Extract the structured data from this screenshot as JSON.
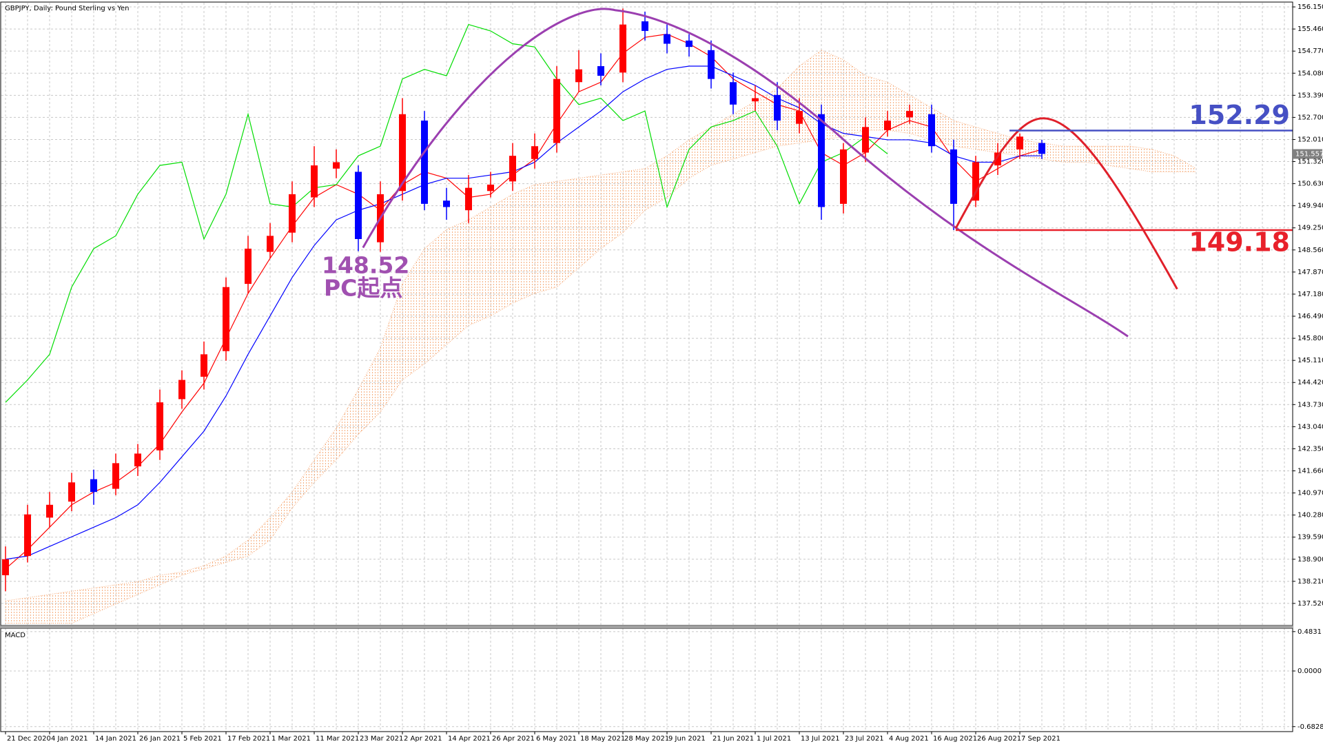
{
  "chart_data": [
    {
      "type": "candlestick",
      "title": "GBPJPY, Daily:  Pound Sterling vs Yen",
      "categories": [
        "21 Dec 2020",
        null,
        "4 Jan 2021",
        null,
        "14 Jan 2021",
        null,
        "26 Jan 2021",
        null,
        "5 Feb 2021",
        null,
        "17 Feb 2021",
        null,
        "1 Mar 2021",
        null,
        "11 Mar 2021",
        null,
        "23 Mar 2021",
        null,
        "2 Apr 2021",
        null,
        "14 Apr 2021",
        null,
        "26 Apr 2021",
        null,
        "6 May 2021",
        null,
        "18 May 2021",
        null,
        "28 May 2021",
        null,
        "9 Jun 2021",
        null,
        "21 Jun 2021",
        null,
        "1 Jul 2021",
        null,
        "13 Jul 2021",
        null,
        "23 Jul 2021",
        null,
        "4 Aug 2021",
        null,
        "16 Aug 2021",
        null,
        "26 Aug 2021",
        null,
        "7 Sep 2021",
        null,
        null,
        null,
        null,
        null,
        null,
        null,
        null,
        null,
        null,
        null
      ],
      "open": [
        138.4,
        139.0,
        140.2,
        140.7,
        141.4,
        141.1,
        141.8,
        142.3,
        143.9,
        144.6,
        145.4,
        147.5,
        148.5,
        149.1,
        150.2,
        151.1,
        151.0,
        148.8,
        150.4,
        152.6,
        150.1,
        149.8,
        150.4,
        150.7,
        151.4,
        151.9,
        153.8,
        154.3,
        154.1,
        155.7,
        155.3,
        155.1,
        154.8,
        153.8,
        153.2,
        153.4,
        152.5,
        152.8,
        150.0,
        151.6,
        152.3,
        152.7,
        152.8,
        151.7,
        150.1,
        151.2,
        151.7,
        151.9,
        null,
        null,
        null,
        null,
        null,
        null,
        null,
        null,
        null,
        null
      ],
      "high": [
        139.3,
        140.6,
        141.0,
        141.6,
        141.7,
        142.2,
        142.5,
        144.2,
        144.8,
        145.7,
        147.7,
        149.0,
        149.4,
        150.7,
        151.8,
        151.7,
        151.2,
        150.7,
        153.3,
        152.9,
        150.5,
        150.9,
        151.0,
        151.9,
        152.2,
        154.3,
        154.8,
        154.7,
        156.1,
        156.0,
        155.6,
        155.3,
        155.1,
        154.1,
        153.7,
        153.8,
        153.3,
        153.1,
        151.9,
        152.7,
        152.9,
        153.1,
        153.1,
        152.0,
        151.5,
        151.9,
        152.2,
        152.0,
        null,
        null,
        null,
        null,
        null,
        null,
        null,
        null,
        null,
        null
      ],
      "low": [
        137.9,
        138.8,
        139.9,
        140.4,
        140.6,
        140.9,
        141.5,
        142.0,
        143.6,
        144.2,
        145.1,
        147.2,
        148.3,
        148.8,
        149.9,
        150.8,
        148.52,
        148.5,
        150.1,
        149.8,
        149.5,
        149.4,
        150.2,
        150.4,
        151.1,
        151.6,
        153.5,
        153.7,
        153.8,
        155.1,
        154.7,
        154.6,
        153.6,
        152.8,
        152.9,
        152.3,
        152.2,
        149.5,
        149.7,
        151.3,
        152.1,
        152.5,
        151.6,
        149.18,
        149.9,
        150.9,
        151.4,
        151.4,
        null,
        null,
        null,
        null,
        null,
        null,
        null,
        null,
        null,
        null
      ],
      "close": [
        138.9,
        140.3,
        140.6,
        141.3,
        141.0,
        141.9,
        142.2,
        143.8,
        144.5,
        145.3,
        147.4,
        148.6,
        149.0,
        150.3,
        151.2,
        151.3,
        148.9,
        150.3,
        152.8,
        150.0,
        149.9,
        150.5,
        150.6,
        151.5,
        151.8,
        153.9,
        154.2,
        154.0,
        155.6,
        155.4,
        155.0,
        154.9,
        153.9,
        153.1,
        153.3,
        152.6,
        152.9,
        149.9,
        151.7,
        152.4,
        152.6,
        152.9,
        151.8,
        150.0,
        151.3,
        151.6,
        152.1,
        151.56,
        null,
        null,
        null,
        null,
        null,
        null,
        null,
        null,
        null,
        null
      ],
      "up_color": "#ff0000",
      "down_color": "#0000ff",
      "series": [
        {
          "color": "#ff0000",
          "values": [
            138.6,
            139.2,
            139.9,
            140.6,
            141.0,
            141.3,
            141.8,
            142.5,
            143.5,
            144.4,
            145.8,
            147.2,
            148.3,
            149.3,
            150.2,
            150.6,
            150.3,
            149.8,
            150.6,
            151.0,
            150.8,
            150.2,
            150.3,
            150.9,
            151.4,
            152.5,
            153.5,
            153.8,
            154.7,
            155.2,
            155.3,
            155.0,
            154.6,
            153.9,
            153.5,
            153.1,
            152.9,
            151.6,
            151.2,
            151.6,
            152.3,
            152.6,
            152.4,
            151.4,
            150.7,
            151.1,
            151.5,
            151.7,
            null,
            null,
            null,
            null,
            null,
            null,
            null,
            null,
            null,
            null
          ]
        },
        {
          "color": "#0000ff",
          "values": [
            138.9,
            139.0,
            139.3,
            139.6,
            139.9,
            140.2,
            140.6,
            141.3,
            142.1,
            142.9,
            144.0,
            145.3,
            146.5,
            147.7,
            148.7,
            149.5,
            149.8,
            150.0,
            150.3,
            150.6,
            150.8,
            150.8,
            150.9,
            151.0,
            151.3,
            151.9,
            152.4,
            152.9,
            153.5,
            153.9,
            154.2,
            154.3,
            154.3,
            154.0,
            153.7,
            153.3,
            153.0,
            152.5,
            152.2,
            152.1,
            152.0,
            152.0,
            151.9,
            151.5,
            151.3,
            151.3,
            151.5,
            151.5,
            null,
            null,
            null,
            null,
            null,
            null,
            null,
            null,
            null,
            null
          ]
        },
        {
          "color": "#00dd00",
          "values": [
            143.8,
            144.5,
            145.3,
            147.4,
            148.6,
            149.0,
            150.3,
            151.2,
            151.3,
            148.9,
            150.3,
            152.8,
            150.0,
            149.9,
            150.5,
            150.6,
            151.5,
            151.8,
            153.9,
            154.2,
            154.0,
            155.6,
            155.4,
            155.0,
            154.9,
            153.9,
            153.1,
            153.3,
            152.6,
            152.9,
            149.9,
            151.7,
            152.4,
            152.6,
            152.9,
            151.8,
            150.0,
            151.3,
            151.6,
            152.1,
            151.56,
            null,
            null,
            null,
            null,
            null,
            null,
            null,
            null,
            null,
            null,
            null,
            null,
            null,
            null,
            null,
            null,
            null
          ]
        }
      ],
      "cloud": {
        "color": "#f5a46e",
        "upper": [
          137.6,
          137.7,
          137.8,
          137.9,
          138.0,
          138.1,
          138.2,
          138.4,
          138.5,
          138.7,
          139.0,
          139.5,
          140.2,
          141.0,
          142.0,
          143.0,
          144.2,
          145.5,
          147.5,
          148.6,
          149.2,
          149.5,
          149.9,
          150.3,
          150.6,
          150.7,
          150.8,
          150.9,
          151.0,
          151.1,
          151.5,
          152.0,
          152.4,
          152.8,
          153.2,
          153.6,
          154.3,
          154.8,
          154.5,
          154.0,
          153.8,
          153.4,
          153.0,
          152.6,
          152.4,
          152.2,
          152.0,
          151.9,
          151.8,
          151.8,
          151.8,
          151.8,
          151.7,
          151.5,
          151.1,
          null,
          null,
          null
        ],
        "lower": [
          136.9,
          136.9,
          136.9,
          136.9,
          137.2,
          137.5,
          137.8,
          138.1,
          138.4,
          138.6,
          138.8,
          139.0,
          139.5,
          140.5,
          141.3,
          142.0,
          142.8,
          143.5,
          144.5,
          145.0,
          145.6,
          146.2,
          146.5,
          146.9,
          147.2,
          147.4,
          148.0,
          148.6,
          149.1,
          149.8,
          150.2,
          150.8,
          151.2,
          151.4,
          151.6,
          151.8,
          151.9,
          152.0,
          152.1,
          152.3,
          152.3,
          152.2,
          152.0,
          151.8,
          151.7,
          151.6,
          151.5,
          151.4,
          151.3,
          151.3,
          151.2,
          151.1,
          151.0,
          151.0,
          151.0,
          null,
          null,
          null
        ]
      },
      "ylim": [
        136.83,
        156.28
      ],
      "yticks": [
        {
          "value": 137.52,
          "label": "137.520"
        },
        {
          "value": 138.21,
          "label": "138.210"
        },
        {
          "value": 138.9,
          "label": "138.900"
        },
        {
          "value": 139.59,
          "label": "139.590"
        },
        {
          "value": 140.28,
          "label": "140.280"
        },
        {
          "value": 140.97,
          "label": "140.970"
        },
        {
          "value": 141.66,
          "label": "141.660"
        },
        {
          "value": 142.35,
          "label": "142.350"
        },
        {
          "value": 143.04,
          "label": "143.040"
        },
        {
          "value": 143.73,
          "label": "143.730"
        },
        {
          "value": 144.42,
          "label": "144.420"
        },
        {
          "value": 145.11,
          "label": "145.110"
        },
        {
          "value": 145.8,
          "label": "145.800"
        },
        {
          "value": 146.49,
          "label": "146.490"
        },
        {
          "value": 147.18,
          "label": "147.180"
        },
        {
          "value": 147.87,
          "label": "147.870"
        },
        {
          "value": 148.56,
          "label": "148.560"
        },
        {
          "value": 149.25,
          "label": "149.250"
        },
        {
          "value": 149.94,
          "label": "149.940"
        },
        {
          "value": 150.63,
          "label": "150.630"
        },
        {
          "value": 151.32,
          "label": "151.320"
        },
        {
          "value": 152.01,
          "label": "152.010"
        },
        {
          "value": 152.7,
          "label": "152.700"
        },
        {
          "value": 153.39,
          "label": "153.390"
        },
        {
          "value": 154.08,
          "label": "154.080"
        },
        {
          "value": 154.77,
          "label": "154.770"
        },
        {
          "value": 155.46,
          "label": "155.460"
        },
        {
          "value": 156.15,
          "label": "156.150"
        }
      ],
      "grid": true,
      "last_price": 151.557,
      "hlines": [
        {
          "value": 152.29,
          "color": "#4650c4"
        },
        {
          "value": 149.18,
          "color": "#e8202a"
        }
      ],
      "low_label": 148.52,
      "low_note": "PC起点"
    },
    {
      "type": "line",
      "title": "MACD",
      "ylim": [
        -0.744,
        0.524
      ],
      "yticks": [
        0.4831,
        {
          "value": 0,
          "label": "0.0000"
        },
        -0.6828
      ],
      "grid": true
    }
  ]
}
